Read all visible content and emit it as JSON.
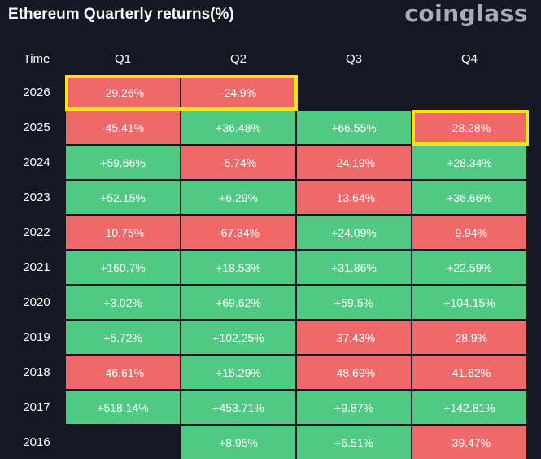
{
  "header": {
    "title": "Ethereum Quarterly returns(%)",
    "brand": "coinglass"
  },
  "colors": {
    "positive": "#4fc983",
    "negative": "#f0696a",
    "highlight": "#f5e21a",
    "background": "#151822"
  },
  "chart_data": {
    "type": "table",
    "title": "Ethereum Quarterly returns(%)",
    "columns": [
      "Time",
      "Q1",
      "Q2",
      "Q3",
      "Q4"
    ],
    "rows": [
      {
        "year": "2026",
        "values": [
          "-29.26%",
          "-24.9%",
          null,
          null
        ]
      },
      {
        "year": "2025",
        "values": [
          "-45.41%",
          "+36.48%",
          "+66.55%",
          "-28.28%"
        ]
      },
      {
        "year": "2024",
        "values": [
          "+59.66%",
          "-5.74%",
          "-24.19%",
          "+28.34%"
        ]
      },
      {
        "year": "2023",
        "values": [
          "+52.15%",
          "+6.29%",
          "-13.64%",
          "+36.66%"
        ]
      },
      {
        "year": "2022",
        "values": [
          "-10.75%",
          "-67.34%",
          "+24.09%",
          "-9.94%"
        ]
      },
      {
        "year": "2021",
        "values": [
          "+160.7%",
          "+18.53%",
          "+31.86%",
          "+22.59%"
        ]
      },
      {
        "year": "2020",
        "values": [
          "+3.02%",
          "+69.62%",
          "+59.5%",
          "+104.15%"
        ]
      },
      {
        "year": "2019",
        "values": [
          "+5.72%",
          "+102.25%",
          "-37.43%",
          "-28.9%"
        ]
      },
      {
        "year": "2018",
        "values": [
          "-46.61%",
          "+15.29%",
          "-48.69%",
          "-41.62%"
        ]
      },
      {
        "year": "2017",
        "values": [
          "+518.14%",
          "+453.71%",
          "+9.87%",
          "+142.81%"
        ]
      },
      {
        "year": "2016",
        "values": [
          null,
          "+8.95%",
          "+6.51%",
          "-39.47%"
        ]
      }
    ],
    "highlighted": [
      {
        "year": "2026",
        "quarters": [
          "Q1",
          "Q2"
        ]
      },
      {
        "year": "2025",
        "quarters": [
          "Q4"
        ]
      }
    ]
  }
}
